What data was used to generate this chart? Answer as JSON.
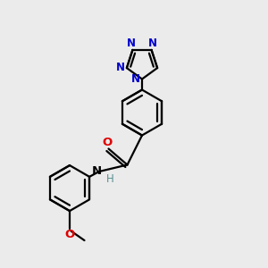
{
  "bg_color": "#ebebeb",
  "bond_color": "#000000",
  "N_color": "#0000cc",
  "O_color": "#dd0000",
  "NH_color": "#5a9090",
  "figsize": [
    3.0,
    3.0
  ],
  "dpi": 100,
  "xlim": [
    0,
    10
  ],
  "ylim": [
    0,
    10
  ]
}
